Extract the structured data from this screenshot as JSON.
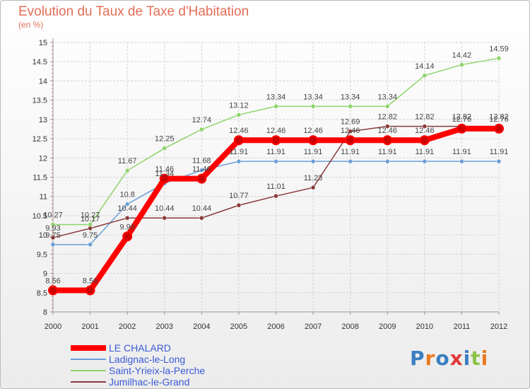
{
  "title": "Evolution du Taux de Taxe d'Habitation",
  "subtitle": "(en %)",
  "brand": {
    "text": "Proxiti",
    "colors": [
      "#3a7fc1",
      "#e87a1f",
      "#3a7fc1",
      "#e03a3a",
      "#3a7fc1",
      "#8bc34a",
      "#e87a1f"
    ]
  },
  "chart_data": {
    "type": "line",
    "x": [
      2000,
      2001,
      2002,
      2003,
      2004,
      2005,
      2006,
      2007,
      2008,
      2009,
      2010,
      2011,
      2012
    ],
    "ylim": [
      8,
      15
    ],
    "yticks": [
      8,
      8.5,
      9,
      9.5,
      10,
      10.5,
      11,
      11.5,
      12,
      12.5,
      13,
      13.5,
      14,
      14.5,
      15
    ],
    "ytick_labels": [
      "8",
      "8.5",
      "9",
      "9.5",
      "10",
      "10.5",
      "11",
      "11.5",
      "12",
      "12.5",
      "13",
      "13.5",
      "14",
      "14.5",
      "15"
    ],
    "grid": true,
    "legend_position": "bottom-left",
    "series": [
      {
        "name": "Saint-Yrieix-la-Perche",
        "color": "#8fd46a",
        "values": [
          10.27,
          10.27,
          11.67,
          12.25,
          12.74,
          13.12,
          13.34,
          13.34,
          13.34,
          13.34,
          14.14,
          14.42,
          14.59
        ],
        "labels": [
          "10.27",
          "10.27",
          "11.67",
          "12.25",
          "12.74",
          "13.12",
          "13.34",
          "13.34",
          "13.34",
          "13.34",
          "14.14",
          "14.42",
          "14.59"
        ]
      },
      {
        "name": "Ladignac-le-Long",
        "color": "#6a9fd8",
        "values": [
          9.75,
          9.75,
          10.8,
          11.34,
          11.68,
          11.91,
          11.91,
          11.91,
          11.91,
          11.91,
          11.91,
          11.91,
          11.91
        ],
        "labels": [
          "9.75",
          "9.75",
          "10.8",
          "11.34",
          "11.68",
          "11.91",
          "11.91",
          "11.91",
          "11.91",
          "11.91",
          "11.91",
          "11.91",
          "11.91"
        ]
      },
      {
        "name": "Jumilhac-le-Grand",
        "color": "#8b3a3a",
        "values": [
          9.93,
          10.17,
          10.44,
          10.44,
          10.44,
          10.77,
          11.01,
          11.23,
          12.69,
          12.82,
          12.82,
          12.82,
          12.82
        ],
        "labels": [
          "9.93",
          "10.17",
          "10.44",
          "10.44",
          "10.44",
          "10.77",
          "11.01",
          "11.23",
          "12.69",
          "12.82",
          "12.82",
          "12.82",
          "12.82"
        ]
      },
      {
        "name": "LE CHALARD",
        "color": "#ff0000",
        "values": [
          8.56,
          8.56,
          9.96,
          11.46,
          11.46,
          12.46,
          12.46,
          12.46,
          12.46,
          12.46,
          12.46,
          12.76,
          12.76
        ],
        "labels": [
          "8.56",
          "8.56",
          "9.96",
          "11.46",
          "11.46",
          "12.46",
          "12.46",
          "12.46",
          "12.46",
          "12.46",
          "12.46",
          "12.76",
          "12.76"
        ]
      }
    ],
    "legend": [
      {
        "name": "LE CHALARD",
        "color": "#ff0000",
        "width": 8
      },
      {
        "name": "Ladignac-le-Long",
        "color": "#6a9fd8",
        "width": 2
      },
      {
        "name": "Saint-Yrieix-la-Perche",
        "color": "#8fd46a",
        "width": 2
      },
      {
        "name": "Jumilhac-le-Grand",
        "color": "#8b3a3a",
        "width": 2
      }
    ]
  }
}
